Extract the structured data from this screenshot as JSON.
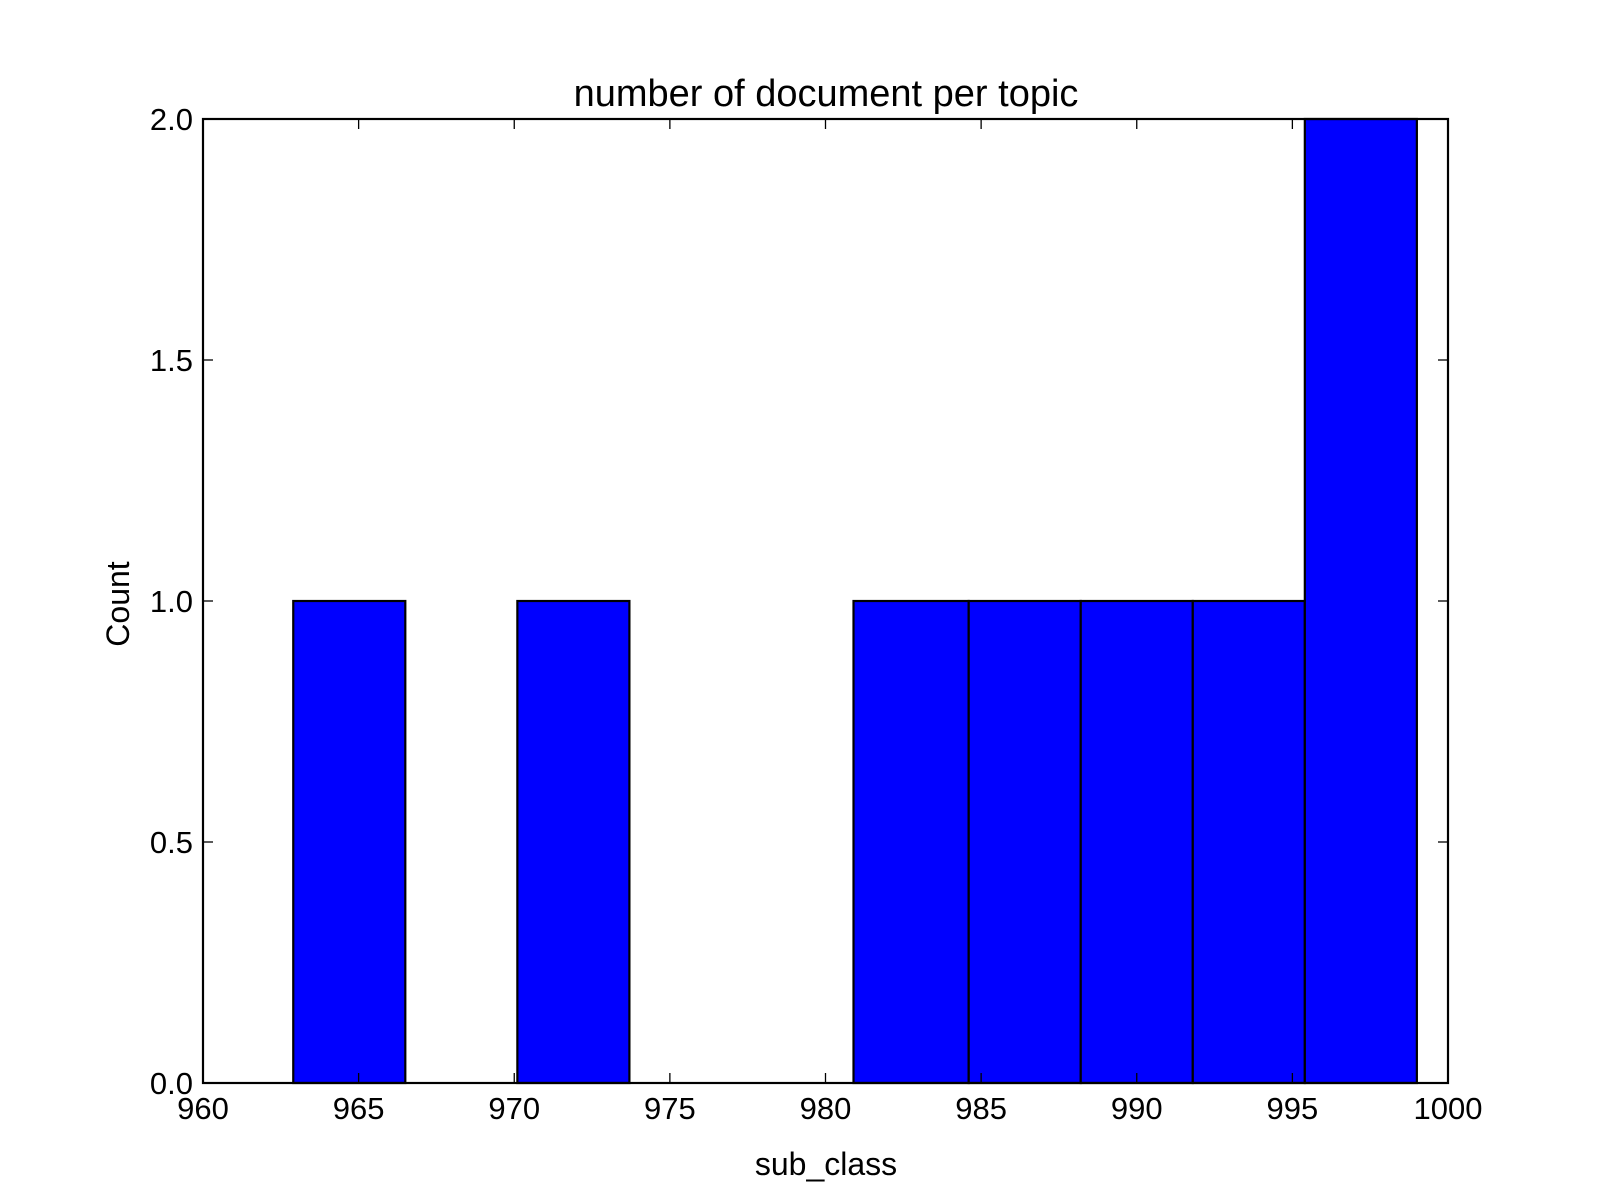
{
  "chart_data": {
    "type": "bar",
    "histogram": true,
    "title": "number of document per topic",
    "xlabel": "sub_class",
    "ylabel": "Count",
    "xlim": [
      960,
      1000
    ],
    "ylim": [
      0,
      2
    ],
    "x_ticks": [
      "960",
      "965",
      "970",
      "975",
      "980",
      "985",
      "990",
      "995",
      "1000"
    ],
    "y_ticks": [
      "0.0",
      "0.5",
      "1.0",
      "1.5",
      "2.0"
    ],
    "bins": [
      {
        "x0": 962.9,
        "x1": 966.5,
        "value": 1
      },
      {
        "x0": 966.5,
        "x1": 970.1,
        "value": 0
      },
      {
        "x0": 970.1,
        "x1": 973.7,
        "value": 1
      },
      {
        "x0": 973.7,
        "x1": 977.3,
        "value": 0
      },
      {
        "x0": 977.3,
        "x1": 980.9,
        "value": 0
      },
      {
        "x0": 980.9,
        "x1": 984.6,
        "value": 1
      },
      {
        "x0": 984.6,
        "x1": 988.2,
        "value": 1
      },
      {
        "x0": 988.2,
        "x1": 991.8,
        "value": 1
      },
      {
        "x0": 991.8,
        "x1": 995.4,
        "value": 1
      },
      {
        "x0": 995.4,
        "x1": 999.0,
        "value": 2
      }
    ],
    "bar_color": "#0000ff",
    "edge_color": "#000000",
    "grid": false,
    "legend": false
  }
}
